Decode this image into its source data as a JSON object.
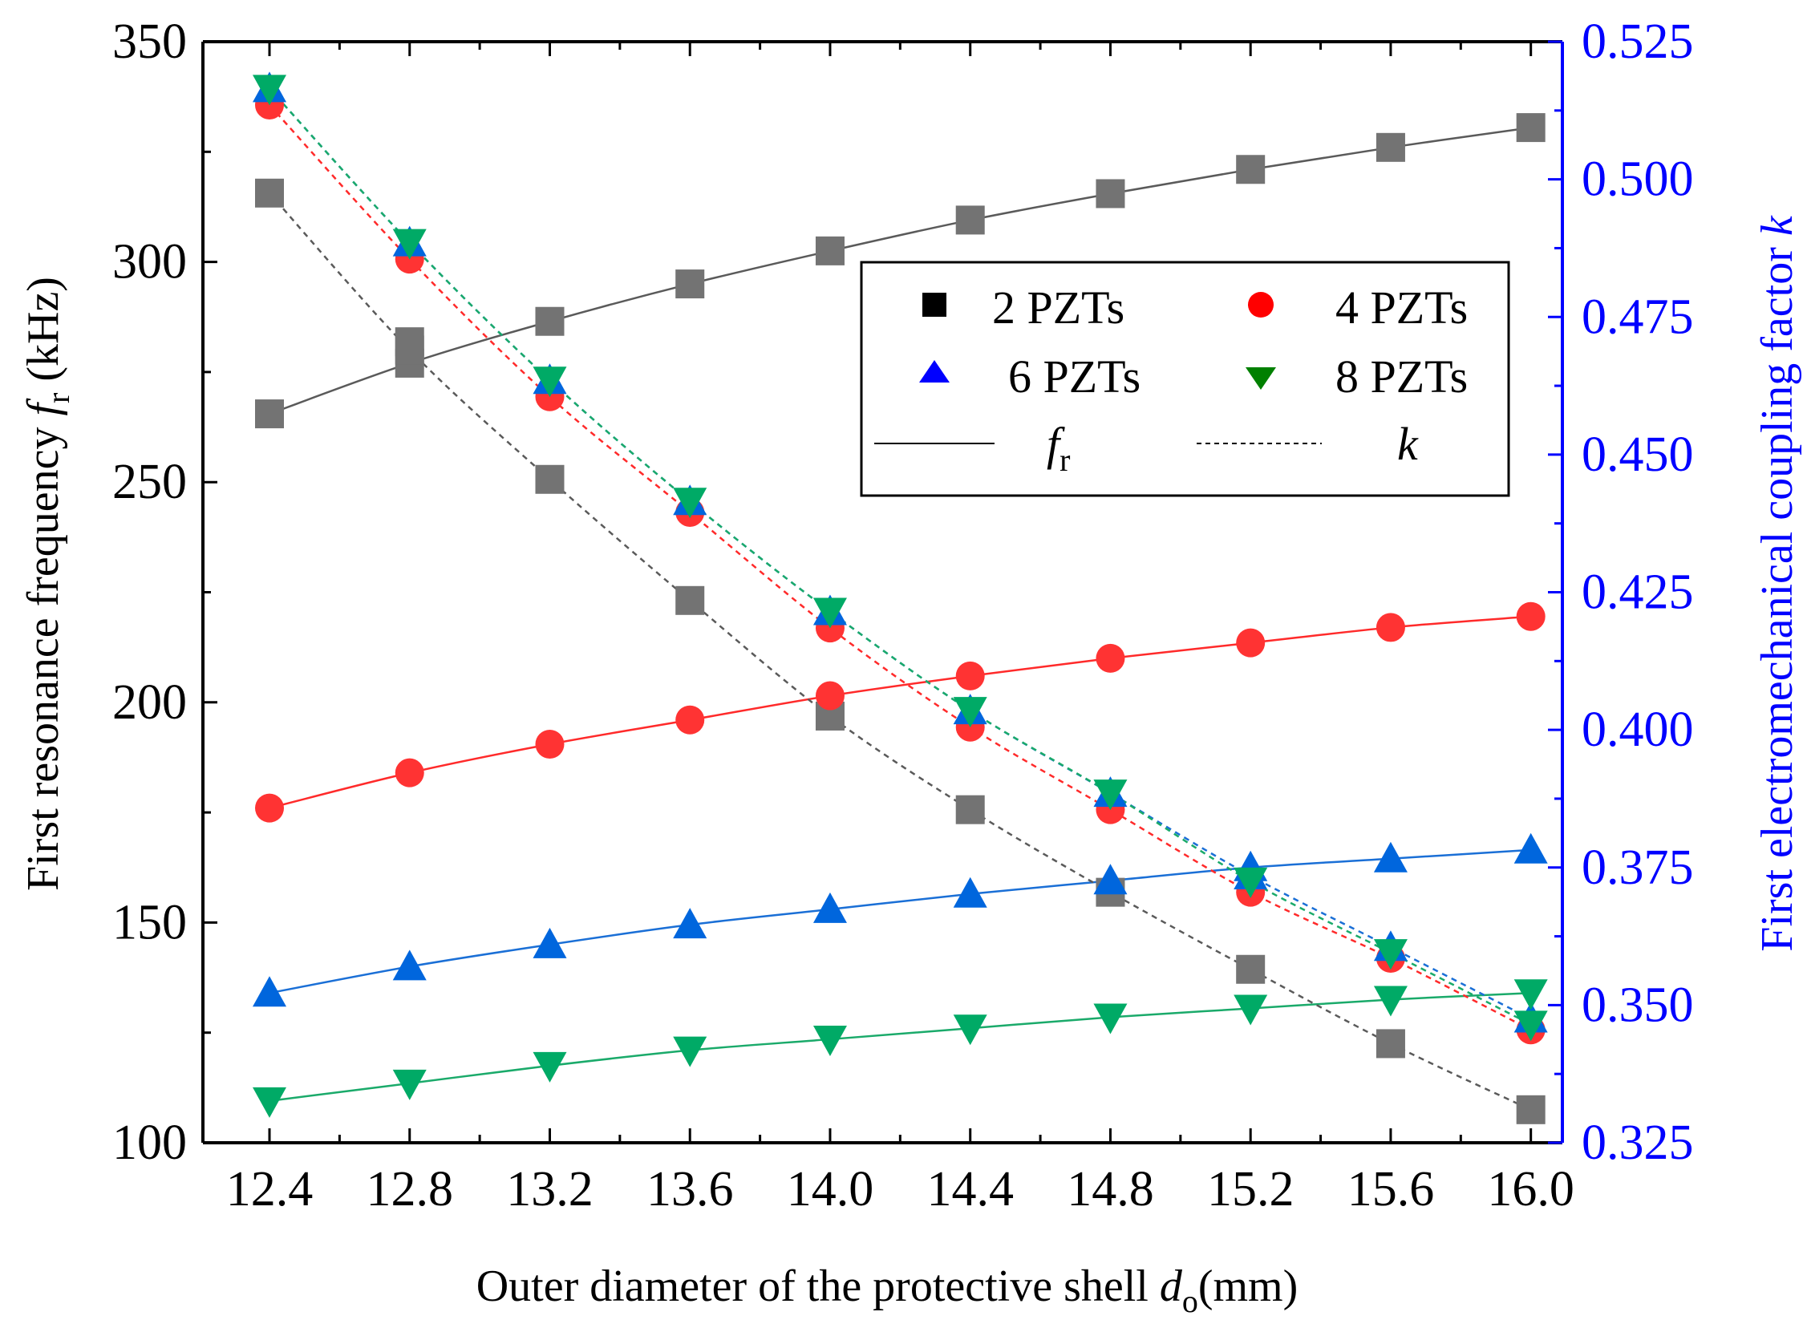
{
  "chart_data": {
    "type": "scatter",
    "x": [
      12.4,
      12.8,
      13.2,
      13.6,
      14.0,
      14.4,
      14.8,
      15.2,
      15.6,
      16.0
    ],
    "x_ticks": [
      12.4,
      12.8,
      13.2,
      13.6,
      14.0,
      14.4,
      14.8,
      15.2,
      15.6,
      16.0
    ],
    "x_tick_labels": [
      "12.4",
      "12.8",
      "13.2",
      "13.6",
      "14.0",
      "14.4",
      "14.8",
      "15.2",
      "15.6",
      "16.0"
    ],
    "xlim": [
      12.21,
      16.09
    ],
    "y_left_ticks": [
      100,
      150,
      200,
      250,
      300,
      350
    ],
    "y_left_tick_labels": [
      "100",
      "150",
      "200",
      "250",
      "300",
      "350"
    ],
    "ylim_left": [
      100,
      350
    ],
    "y_right_ticks": [
      0.325,
      0.35,
      0.375,
      0.4,
      0.425,
      0.45,
      0.475,
      0.5,
      0.525
    ],
    "y_right_tick_labels": [
      "0.325",
      "0.350",
      "0.375",
      "0.400",
      "0.425",
      "0.450",
      "0.475",
      "0.500",
      "0.525"
    ],
    "ylim_right": [
      0.325,
      0.525
    ],
    "xlabel": {
      "main": "Outer diameter of the protective shell ",
      "italic": "d",
      "sub": "o",
      "unit": "(mm)"
    },
    "ylabel_left": {
      "main": "First resonance frequency ",
      "italic": "f",
      "sub": "r",
      "unit": " (kHz)"
    },
    "ylabel_right": {
      "main": "First electromechanical coupling factor ",
      "italic": "k"
    },
    "right_axis_color": "#0000ff",
    "series": [
      {
        "name": "2 PZTs",
        "marker": "square",
        "color": "#737373",
        "line_color": "#5a5a5a",
        "fr": [
          265.5,
          277.0,
          286.5,
          295.0,
          302.5,
          309.5,
          315.5,
          321.0,
          326.0,
          330.5
        ],
        "k": [
          0.4975,
          0.469,
          0.4455,
          0.4235,
          0.4025,
          0.3855,
          0.3705,
          0.3565,
          0.343,
          0.331
        ],
        "k_extra_point": {
          "x": 12.8,
          "k": 0.4705
        }
      },
      {
        "name": "4 PZTs",
        "marker": "circle",
        "color": "#ff3333",
        "line_color": "#ff2a2a",
        "fr": [
          176.0,
          184.0,
          190.5,
          196.0,
          201.5,
          206.0,
          210.0,
          213.5,
          217.0,
          219.5
        ],
        "k": [
          0.5135,
          0.4855,
          0.4605,
          0.4395,
          0.4185,
          0.4005,
          0.3855,
          0.3705,
          0.3585,
          0.3455
        ]
      },
      {
        "name": "6 PZTs",
        "marker": "triangle-up",
        "color": "#0066dd",
        "line_color": "#1a6fd6",
        "fr": [
          134.0,
          140.0,
          145.0,
          149.5,
          153.0,
          156.5,
          159.5,
          162.5,
          164.5,
          166.5
        ],
        "k": [
          0.5165,
          0.4885,
          0.4635,
          0.4415,
          0.4215,
          0.4035,
          0.3885,
          0.3735,
          0.3605,
          0.3475
        ]
      },
      {
        "name": "8 PZTs",
        "marker": "triangle-down",
        "color": "#00aa66",
        "line_color": "#1aaa6a",
        "fr": [
          109.5,
          113.5,
          117.5,
          121.0,
          123.5,
          126.0,
          128.5,
          130.5,
          132.5,
          134.0
        ],
        "k": [
          0.5165,
          0.4885,
          0.4635,
          0.4415,
          0.4215,
          0.4035,
          0.3885,
          0.3725,
          0.3595,
          0.3465
        ]
      }
    ],
    "legend": {
      "placement": "top-right",
      "entries": [
        "2 PZTs",
        "4 PZTs",
        "6 PZTs",
        "8 PZTs"
      ],
      "line_fr": {
        "italic": "f",
        "sub": "r"
      },
      "line_k": {
        "italic": "k"
      },
      "marker_colors": {
        "2 PZTs": "#000000",
        "4 PZTs": "#ff0000",
        "6 PZTs": "#0000ff",
        "8 PZTs": "#008000"
      }
    }
  }
}
